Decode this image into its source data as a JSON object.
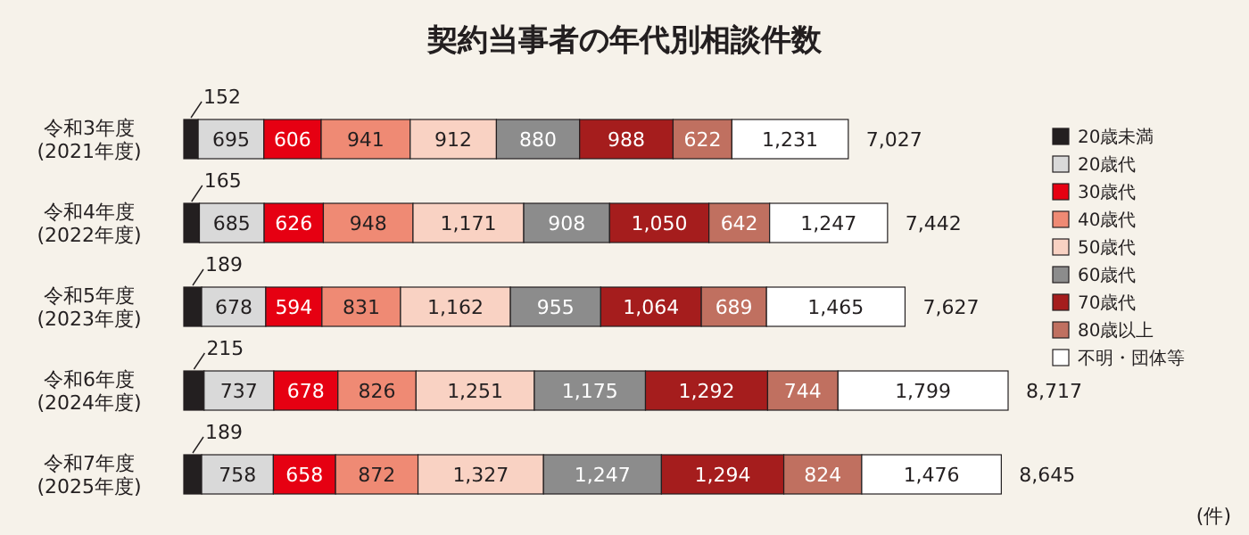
{
  "chart_data": {
    "type": "bar",
    "orientation": "horizontal",
    "stacked": true,
    "legend": "right",
    "title": "契約当事者の年代別相談件数",
    "categories": [
      "令和3年度\n(2021年度)",
      "令和4年度\n(2022年度)",
      "令和5年度\n(2023年度)",
      "令和6年度\n(2024年度)",
      "令和7年度\n(2025年度)"
    ],
    "series": [
      {
        "name": "20歳未満",
        "color": "#231f20",
        "values": [
          152,
          165,
          189,
          215,
          189
        ],
        "value_labels": [
          "152",
          "165",
          "189",
          "215",
          "189"
        ]
      },
      {
        "name": "20歳代",
        "color": "#d9d9d9",
        "values": [
          695,
          685,
          678,
          737,
          758
        ],
        "value_labels": [
          "695",
          "685",
          "678",
          "737",
          "758"
        ]
      },
      {
        "name": "30歳代",
        "color": "#e60012",
        "values": [
          606,
          626,
          594,
          678,
          658
        ],
        "value_labels": [
          "606",
          "626",
          "594",
          "678",
          "658"
        ]
      },
      {
        "name": "40歳代",
        "color": "#ef8a74",
        "values": [
          941,
          948,
          831,
          826,
          872
        ],
        "value_labels": [
          "941",
          "948",
          "831",
          "826",
          "872"
        ]
      },
      {
        "name": "50歳代",
        "color": "#f9d2c3",
        "values": [
          912,
          1171,
          1162,
          1251,
          1327
        ],
        "value_labels": [
          "912",
          "1,171",
          "1,162",
          "1,251",
          "1,327"
        ]
      },
      {
        "name": "60歳代",
        "color": "#8c8c8c",
        "values": [
          880,
          908,
          955,
          1175,
          1247
        ],
        "value_labels": [
          "880",
          "908",
          "955",
          "1,175",
          "1,247"
        ]
      },
      {
        "name": "70歳代",
        "color": "#a51d1d",
        "values": [
          988,
          1050,
          1064,
          1292,
          1294
        ],
        "value_labels": [
          "988",
          "1,050",
          "1,064",
          "1,292",
          "1,294"
        ]
      },
      {
        "name": "80歳以上",
        "color": "#c07060",
        "values": [
          622,
          642,
          689,
          744,
          824
        ],
        "value_labels": [
          "622",
          "642",
          "689",
          "744",
          "824"
        ]
      },
      {
        "name": "不明・団体等",
        "color": "#ffffff",
        "values": [
          1231,
          1247,
          1465,
          1799,
          1476
        ],
        "value_labels": [
          "1,231",
          "1,247",
          "1,465",
          "1,799",
          "1,476"
        ]
      }
    ],
    "totals": [
      "7,027",
      "7,442",
      "7,627",
      "8,717",
      "8,645"
    ],
    "annotations": [
      "(件)"
    ]
  }
}
